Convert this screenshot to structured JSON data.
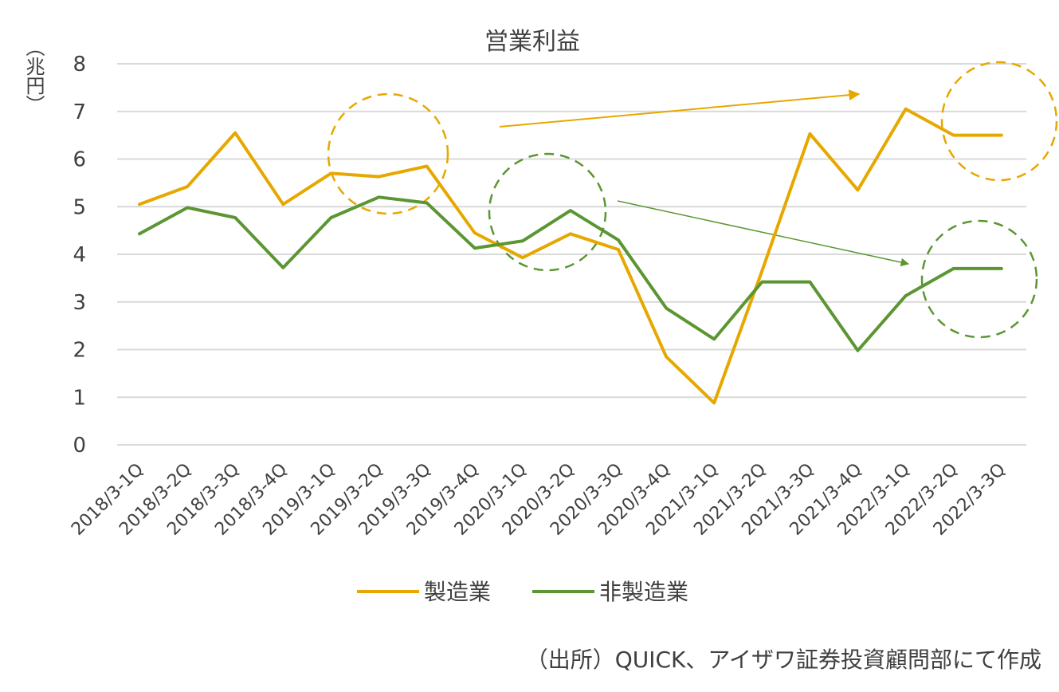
{
  "chart_data": {
    "type": "line",
    "title": "営業利益",
    "ylabel": "（兆円）",
    "ylim": [
      0,
      8
    ],
    "yticks": [
      0,
      1,
      2,
      3,
      4,
      5,
      6,
      7,
      8
    ],
    "grid": true,
    "legend_position": "bottom",
    "categories": [
      "2018/3-1Q",
      "2018/3-2Q",
      "2018/3-3Q",
      "2018/3-4Q",
      "2019/3-1Q",
      "2019/3-2Q",
      "2019/3-3Q",
      "2019/3-4Q",
      "2020/3-1Q",
      "2020/3-2Q",
      "2020/3-3Q",
      "2020/3-4Q",
      "2021/3-1Q",
      "2021/3-2Q",
      "2021/3-3Q",
      "2021/3-4Q",
      "2022/3-1Q",
      "2022/3-2Q",
      "2022/3-3Q"
    ],
    "series": [
      {
        "name": "製造業",
        "color": "#E6A800",
        "values": [
          5.05,
          5.42,
          6.55,
          5.05,
          5.7,
          5.63,
          5.85,
          4.45,
          3.93,
          4.43,
          4.1,
          1.85,
          0.88,
          3.65,
          6.53,
          5.35,
          7.05,
          6.5,
          6.5
        ]
      },
      {
        "name": "非製造業",
        "color": "#5B9632",
        "values": [
          4.43,
          4.98,
          4.77,
          3.72,
          4.77,
          5.2,
          5.08,
          4.13,
          4.28,
          4.92,
          4.3,
          2.87,
          2.22,
          3.42,
          3.42,
          1.98,
          3.13,
          3.7,
          3.7
        ]
      }
    ]
  },
  "source_note": "（出所）QUICK、アイザワ証券投資顧問部にて作成",
  "colors": {
    "manufacturing": "#E6A800",
    "non_manufacturing": "#5B9632",
    "grid": "#D9D9D9",
    "text": "#404040"
  }
}
